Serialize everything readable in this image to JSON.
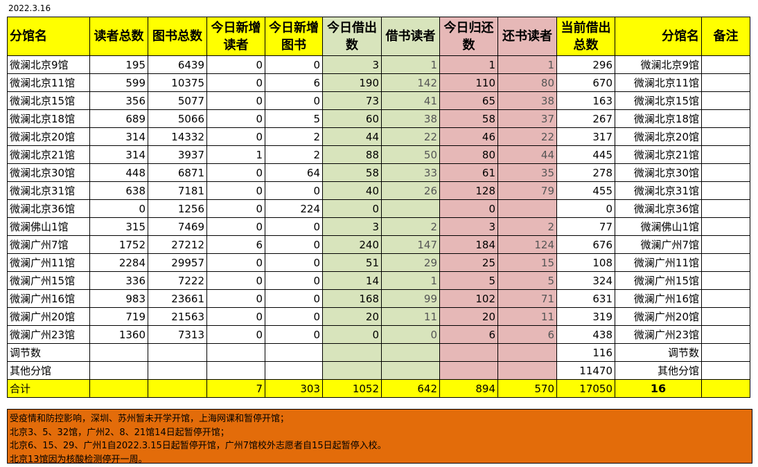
{
  "date": "2022.3.16",
  "headers": [
    "分馆名",
    "读者总数",
    "图书总数",
    "今日新增读者",
    "今日新增图书",
    "今日借出数",
    "借书读者",
    "今日归还数",
    "还书读者",
    "当前借出总数",
    "分馆名",
    "备注"
  ],
  "rows": [
    {
      "name": "微澜北京9馆",
      "readers": "195",
      "books": "6439",
      "new_readers": "0",
      "new_books": "0",
      "lend": "3",
      "lend_readers": "1",
      "ret": "1",
      "ret_readers": "1",
      "current": "296",
      "name2": "微澜北京9馆",
      "note": ""
    },
    {
      "name": "微澜北京11馆",
      "readers": "599",
      "books": "10375",
      "new_readers": "0",
      "new_books": "6",
      "lend": "190",
      "lend_readers": "142",
      "ret": "110",
      "ret_readers": "80",
      "current": "670",
      "name2": "微澜北京11馆",
      "note": ""
    },
    {
      "name": "微澜北京15馆",
      "readers": "356",
      "books": "5077",
      "new_readers": "0",
      "new_books": "0",
      "lend": "73",
      "lend_readers": "41",
      "ret": "65",
      "ret_readers": "38",
      "current": "163",
      "name2": "微澜北京15馆",
      "note": ""
    },
    {
      "name": "微澜北京18馆",
      "readers": "689",
      "books": "5066",
      "new_readers": "0",
      "new_books": "5",
      "lend": "60",
      "lend_readers": "38",
      "ret": "58",
      "ret_readers": "37",
      "current": "267",
      "name2": "微澜北京18馆",
      "note": ""
    },
    {
      "name": "微澜北京20馆",
      "readers": "314",
      "books": "14332",
      "new_readers": "0",
      "new_books": "2",
      "lend": "44",
      "lend_readers": "22",
      "ret": "46",
      "ret_readers": "22",
      "current": "317",
      "name2": "微澜北京20馆",
      "note": ""
    },
    {
      "name": "微澜北京21馆",
      "readers": "314",
      "books": "3937",
      "new_readers": "1",
      "new_books": "2",
      "lend": "88",
      "lend_readers": "50",
      "ret": "80",
      "ret_readers": "44",
      "current": "445",
      "name2": "微澜北京21馆",
      "note": ""
    },
    {
      "name": "微澜北京30馆",
      "readers": "448",
      "books": "6871",
      "new_readers": "0",
      "new_books": "64",
      "lend": "58",
      "lend_readers": "33",
      "ret": "61",
      "ret_readers": "35",
      "current": "278",
      "name2": "微澜北京30馆",
      "note": ""
    },
    {
      "name": "微澜北京31馆",
      "readers": "638",
      "books": "7181",
      "new_readers": "0",
      "new_books": "0",
      "lend": "40",
      "lend_readers": "26",
      "ret": "128",
      "ret_readers": "79",
      "current": "455",
      "name2": "微澜北京31馆",
      "note": ""
    },
    {
      "name": "微澜北京36馆",
      "readers": "0",
      "books": "1256",
      "new_readers": "0",
      "new_books": "224",
      "lend": "0",
      "lend_readers": "",
      "ret": "0",
      "ret_readers": "",
      "current": "0",
      "name2": "微澜北京36馆",
      "note": ""
    },
    {
      "name": "微澜佛山1馆",
      "readers": "315",
      "books": "7469",
      "new_readers": "0",
      "new_books": "0",
      "lend": "3",
      "lend_readers": "2",
      "ret": "3",
      "ret_readers": "2",
      "current": "77",
      "name2": "微澜佛山1馆",
      "note": ""
    },
    {
      "name": "微澜广州7馆",
      "readers": "1752",
      "books": "27212",
      "new_readers": "6",
      "new_books": "0",
      "lend": "240",
      "lend_readers": "147",
      "ret": "184",
      "ret_readers": "124",
      "current": "676",
      "name2": "微澜广州7馆",
      "note": ""
    },
    {
      "name": "微澜广州11馆",
      "readers": "2284",
      "books": "29957",
      "new_readers": "0",
      "new_books": "0",
      "lend": "51",
      "lend_readers": "29",
      "ret": "25",
      "ret_readers": "15",
      "current": "108",
      "name2": "微澜广州11馆",
      "note": ""
    },
    {
      "name": "微澜广州15馆",
      "readers": "336",
      "books": "7222",
      "new_readers": "0",
      "new_books": "0",
      "lend": "14",
      "lend_readers": "1",
      "ret": "5",
      "ret_readers": "5",
      "current": "324",
      "name2": "微澜广州15馆",
      "note": ""
    },
    {
      "name": "微澜广州16馆",
      "readers": "983",
      "books": "23661",
      "new_readers": "0",
      "new_books": "0",
      "lend": "168",
      "lend_readers": "99",
      "ret": "102",
      "ret_readers": "71",
      "current": "631",
      "name2": "微澜广州16馆",
      "note": ""
    },
    {
      "name": "微澜广州20馆",
      "readers": "719",
      "books": "21563",
      "new_readers": "0",
      "new_books": "0",
      "lend": "20",
      "lend_readers": "11",
      "ret": "20",
      "ret_readers": "11",
      "current": "319",
      "name2": "微澜广州20馆",
      "note": ""
    },
    {
      "name": "微澜广州23馆",
      "readers": "1360",
      "books": "7313",
      "new_readers": "0",
      "new_books": "0",
      "lend": "0",
      "lend_readers": "0",
      "ret": "6",
      "ret_readers": "6",
      "current": "438",
      "name2": "微澜广州23馆",
      "note": ""
    },
    {
      "name": "调节数",
      "readers": "",
      "books": "",
      "new_readers": "",
      "new_books": "",
      "lend": "",
      "lend_readers": "",
      "ret": "",
      "ret_readers": "",
      "current": "116",
      "name2": "调节数",
      "note": ""
    },
    {
      "name": "其他分馆",
      "readers": "",
      "books": "",
      "new_readers": "",
      "new_books": "",
      "lend": "",
      "lend_readers": "",
      "ret": "",
      "ret_readers": "",
      "current": "11470",
      "name2": "其他分馆",
      "note": ""
    }
  ],
  "total": {
    "name": "合计",
    "readers": "",
    "books": "",
    "new_readers": "7",
    "new_books": "303",
    "lend": "1052",
    "lend_readers": "642",
    "ret": "894",
    "ret_readers": "570",
    "current": "17050",
    "name2": "16",
    "note": ""
  },
  "notes": [
    "受疫情和防控影响，深圳、苏州暂未开学开馆，上海网课和暂停开馆；",
    "北京3、5、32馆，广州2、8、21馆14日起暂停开馆；",
    "北京6、15、29、广州1自2022.3.15日起暂停开馆，广州7馆校外志愿者自15日起暂停入校。",
    "北京13馆因为核酸检测停开一周。"
  ],
  "colors": {
    "header_yellow": "#ffff00",
    "lend_green": "#d8e4bc",
    "return_pink": "#e6b8b7",
    "notes_orange": "#e36c0a"
  }
}
